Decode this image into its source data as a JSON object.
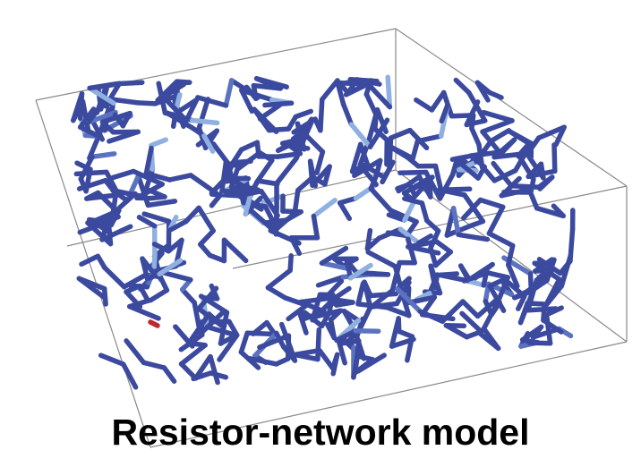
{
  "caption": "Resistor-network model"
}
